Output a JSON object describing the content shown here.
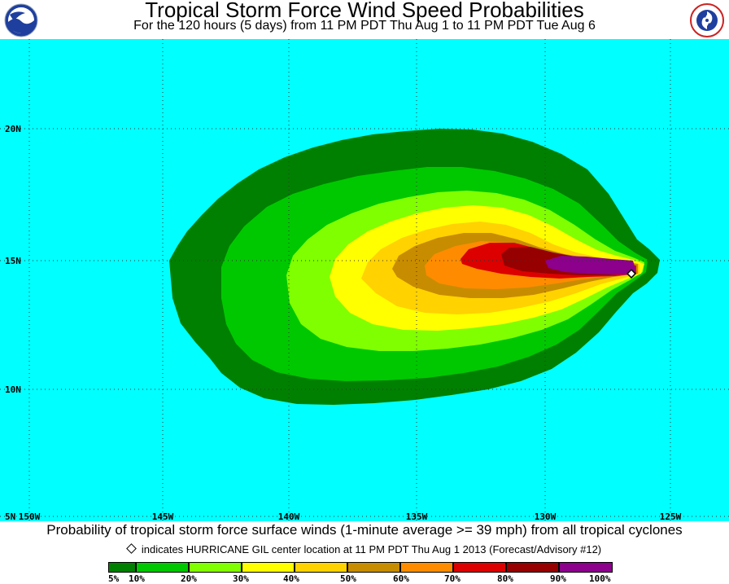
{
  "title": "Tropical Storm Force Wind Speed Probabilities",
  "subtitle": "For the 120 hours (5 days) from 11 PM PDT Thu Aug 1 to 11 PM PDT Tue Aug 6",
  "logos": {
    "left": "NOAA",
    "right": "NATIONAL WEATHER SERVICE"
  },
  "map": {
    "ocean_color": "#00ffff",
    "grid": true,
    "lat_labels": [
      "20N",
      "15N",
      "10N",
      "5N"
    ],
    "lon_labels": [
      "150W",
      "145W",
      "140W",
      "135W",
      "130W",
      "125W"
    ],
    "storm_marker": "diamond"
  },
  "caption": "Probability of tropical storm force surface winds (1-minute average >= 39 mph) from all tropical cyclones",
  "marker_note": "indicates HURRICANE GIL center location at 11 PM PDT Thu Aug 1 2013 (Forecast/Advisory #12)",
  "legend": {
    "colors": [
      "#008000",
      "#00c800",
      "#80ff00",
      "#ffff00",
      "#ffd200",
      "#c88c00",
      "#ff8c00",
      "#dc0000",
      "#960000",
      "#8c008c"
    ],
    "labels": [
      "5%",
      "10%",
      "20%",
      "30%",
      "40%",
      "50%",
      "60%",
      "70%",
      "80%",
      "90%",
      "100%"
    ]
  }
}
